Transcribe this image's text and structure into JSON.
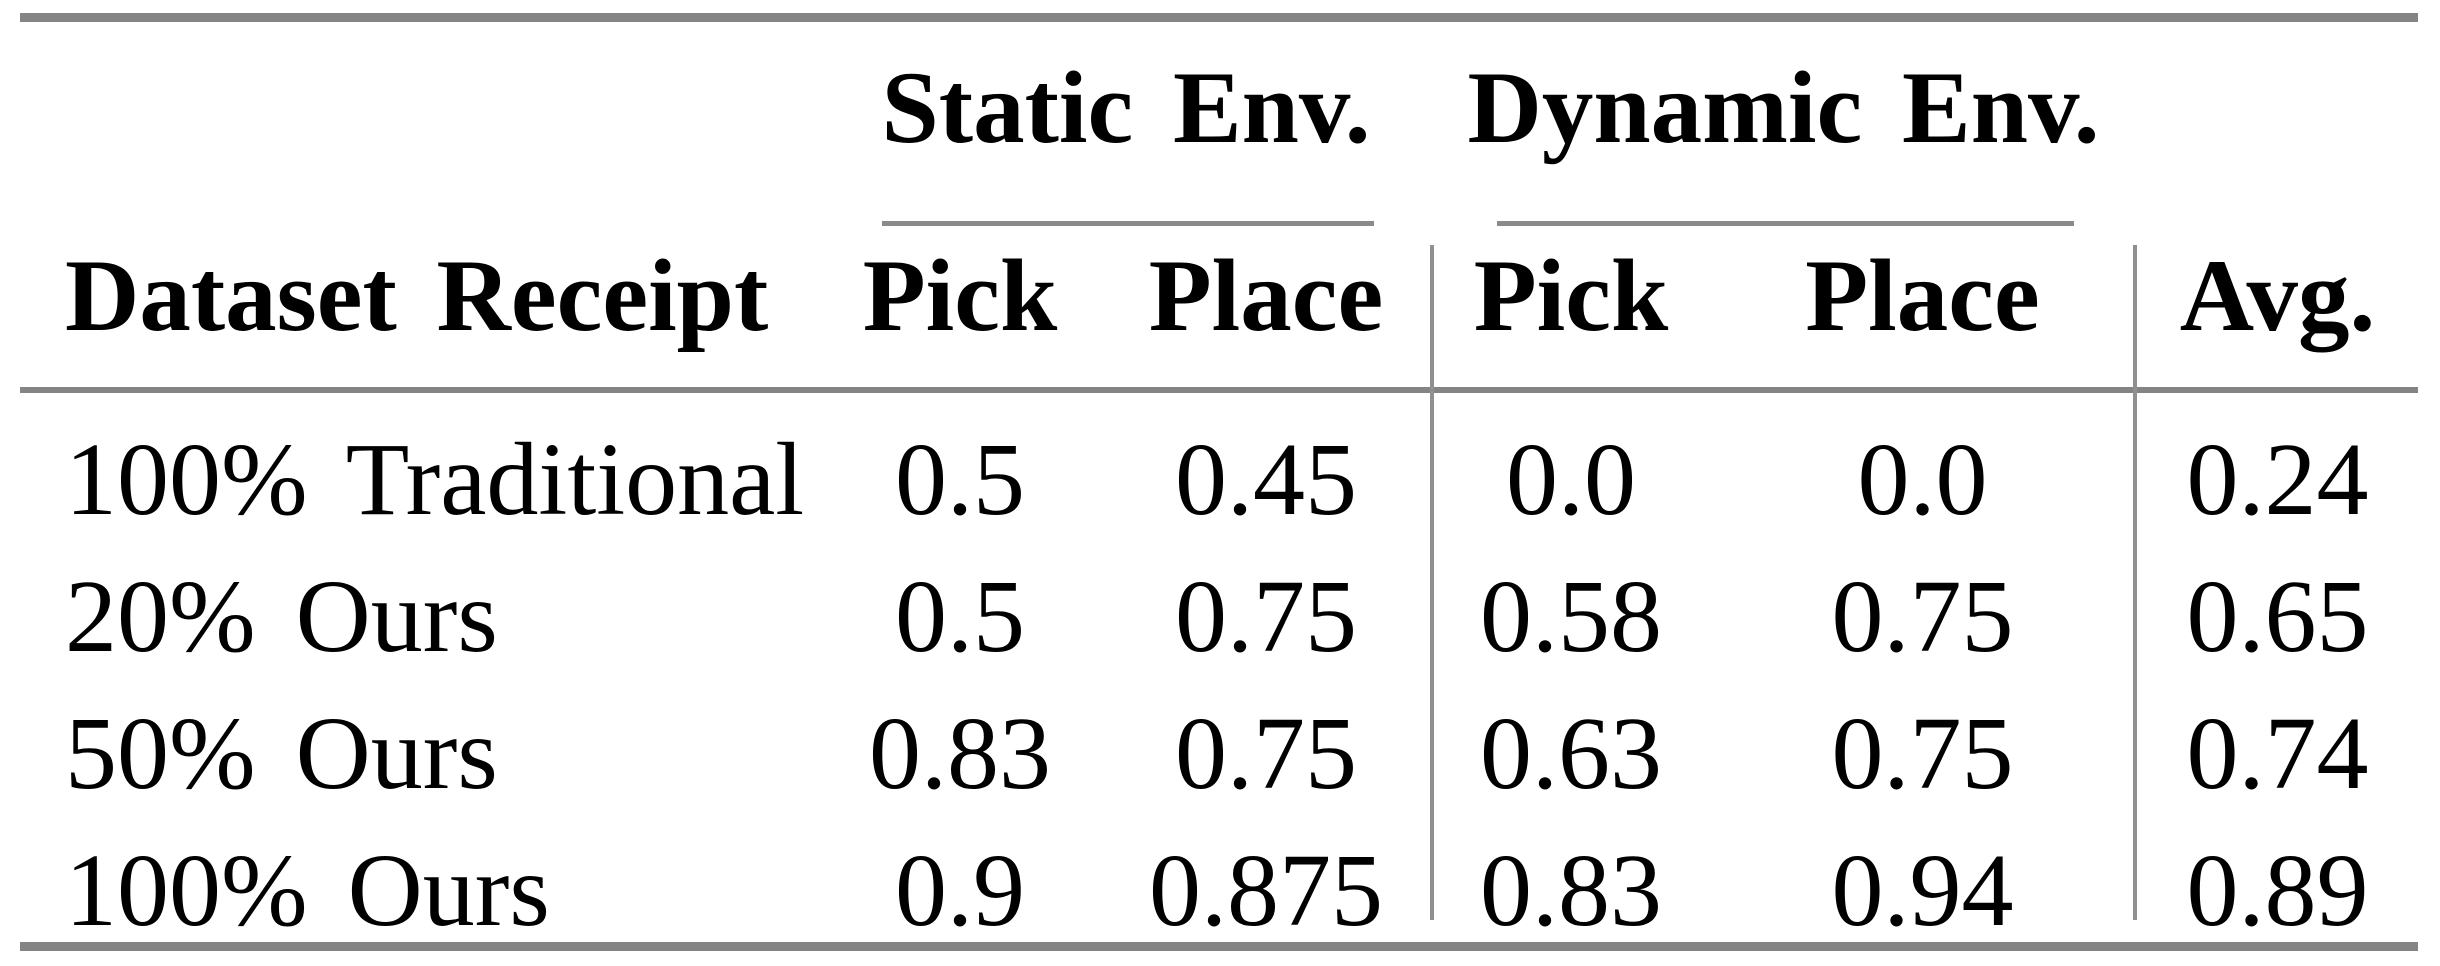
{
  "table": {
    "groups": [
      {
        "label": "Static Env."
      },
      {
        "label": "Dynamic Env."
      }
    ],
    "row_header": "Dataset Receipt",
    "sub_headers": [
      "Pick",
      "Place",
      "Pick",
      "Place",
      "Avg."
    ],
    "rows": [
      {
        "label": "100% Traditional",
        "values": [
          "0.5",
          "0.45",
          "0.0",
          "0.0",
          "0.24"
        ]
      },
      {
        "label": "20% Ours",
        "values": [
          "0.5",
          "0.75",
          "0.58",
          "0.75",
          "0.65"
        ]
      },
      {
        "label": "50% Ours",
        "values": [
          "0.83",
          "0.75",
          "0.63",
          "0.75",
          "0.74"
        ]
      },
      {
        "label": "100% Ours",
        "values": [
          "0.9",
          "0.875",
          "0.83",
          "0.94",
          "0.89"
        ]
      }
    ],
    "colors": {
      "rule_gray": "#848484",
      "divider_gray": "#909090",
      "text": "#000000"
    }
  },
  "chart_data": {
    "type": "table",
    "column_groups": [
      "",
      "Static Env.",
      "Static Env.",
      "Dynamic Env.",
      "Dynamic Env.",
      ""
    ],
    "columns": [
      "Dataset Receipt",
      "Pick",
      "Place",
      "Pick",
      "Place",
      "Avg."
    ],
    "rows": [
      [
        "100% Traditional",
        0.5,
        0.45,
        0.0,
        0.0,
        0.24
      ],
      [
        "20% Ours",
        0.5,
        0.75,
        0.58,
        0.75,
        0.65
      ],
      [
        "50% Ours",
        0.83,
        0.75,
        0.63,
        0.75,
        0.74
      ],
      [
        "100% Ours",
        0.9,
        0.875,
        0.83,
        0.94,
        0.89
      ]
    ]
  }
}
